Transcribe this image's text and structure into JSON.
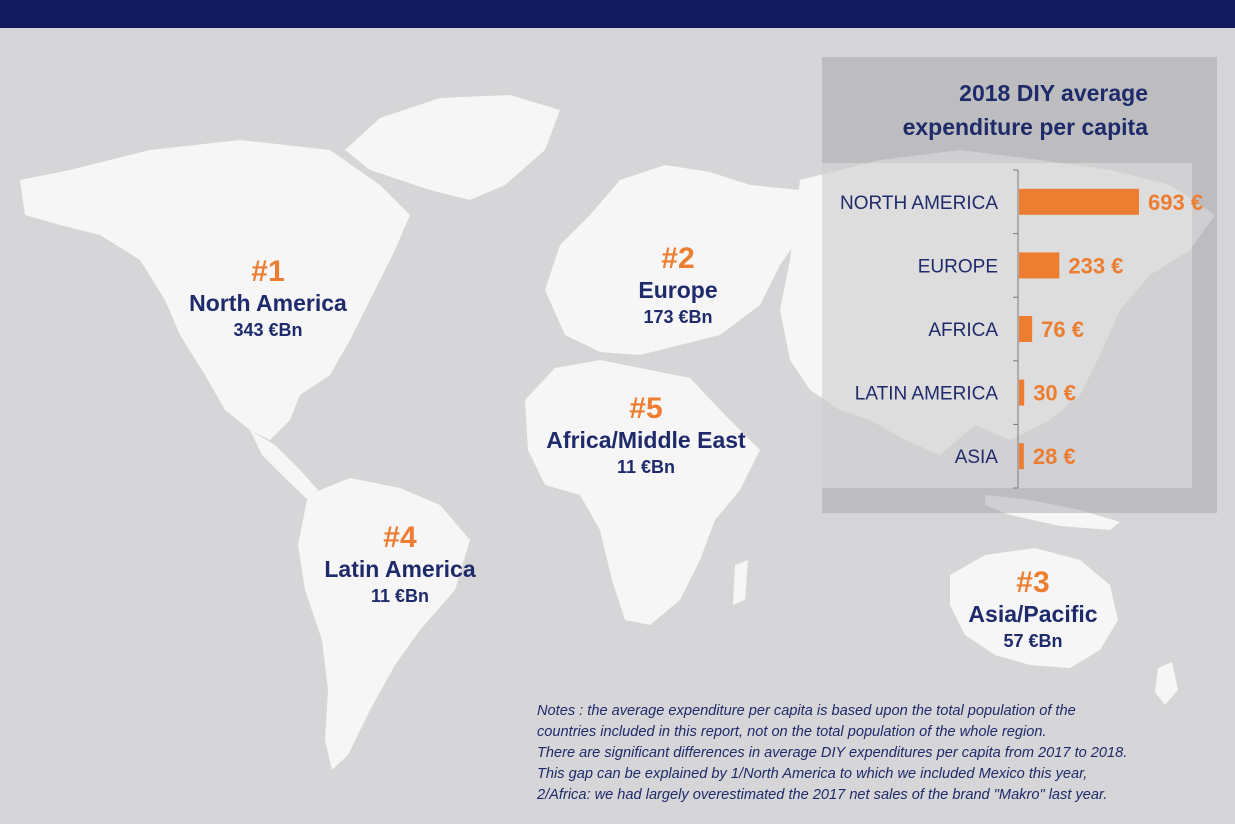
{
  "regions": [
    {
      "rank": "#1",
      "name": "North America",
      "value": "343 €Bn"
    },
    {
      "rank": "#2",
      "name": "Europe",
      "value": "173 €Bn"
    },
    {
      "rank": "#3",
      "name": "Asia/Pacific",
      "value": "57 €Bn"
    },
    {
      "rank": "#4",
      "name": "Latin America",
      "value": "11 €Bn"
    },
    {
      "rank": "#5",
      "name": "Africa/Middle East",
      "value": "11 €Bn"
    }
  ],
  "chart_data": {
    "type": "bar",
    "orientation": "horizontal",
    "title_line1": "2018 DIY average",
    "title_line2": "expenditure per capita",
    "categories": [
      "NORTH AMERICA",
      "EUROPE",
      "AFRICA",
      "LATIN AMERICA",
      "ASIA"
    ],
    "values": [
      693,
      233,
      76,
      30,
      28
    ],
    "value_labels": [
      "693 €",
      "233 €",
      "76 €",
      "30 €",
      "28 €"
    ],
    "bar_color": "#ed7d31",
    "xlim": [
      0,
      693
    ]
  },
  "notes": [
    "Notes : the average expenditure per capita is based upon the total population of the",
    "countries included in this report, not on the total population of the whole region.",
    "There are significant differences in average DIY expenditures per capita from 2017 to 2018.",
    "This gap can be explained by 1/North America to which we included Mexico this year,",
    "2/Africa: we had largely overestimated the 2017 net sales of the brand \"Makro\" last year."
  ],
  "colors": {
    "header": "#141a5e",
    "accent": "#ed7d31",
    "text": "#1f2a6b",
    "background": "#d6d6d8",
    "land": "#f6f6f7"
  }
}
